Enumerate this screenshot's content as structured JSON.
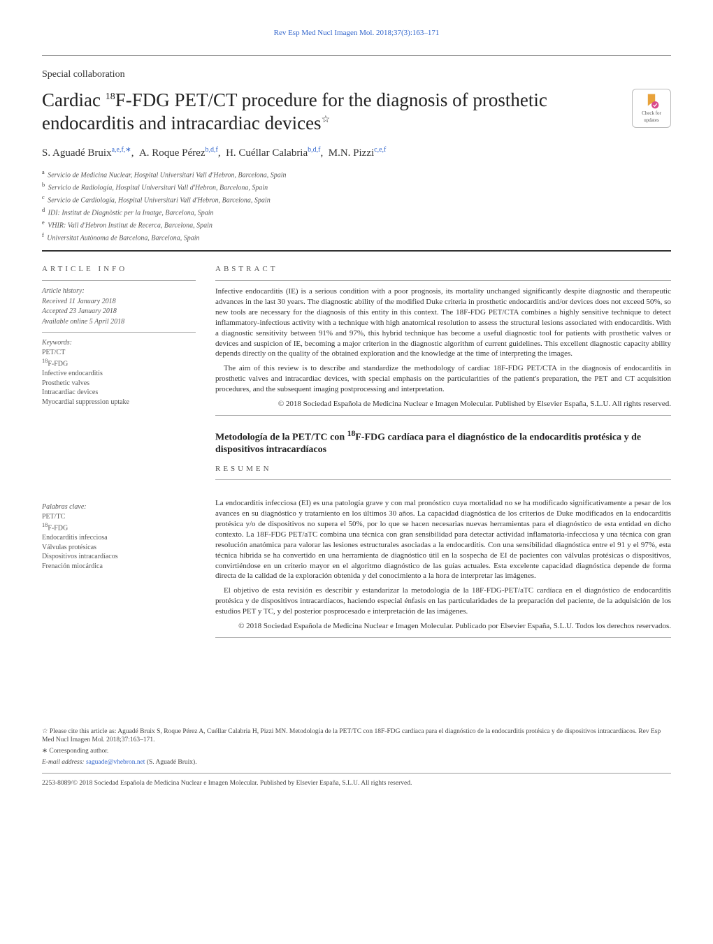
{
  "journal_ref": "Rev Esp Med Nucl Imagen Mol. 2018;37(3):163–171",
  "article_type": "Special collaboration",
  "title_html": "Cardiac <sup>18</sup>F-FDG PET/CT procedure for the diagnosis of prosthetic endocarditis and intracardiac devices",
  "title_note": "☆",
  "check_badge": {
    "line1": "Check for",
    "line2": "updates"
  },
  "authors": [
    {
      "name": "S. Aguadé Bruix",
      "aff": "a,e,f,∗"
    },
    {
      "name": "A. Roque Pérez",
      "aff": "b,d,f"
    },
    {
      "name": "H. Cuéllar Calabria",
      "aff": "b,d,f"
    },
    {
      "name": "M.N. Pizzi",
      "aff": "c,e,f"
    }
  ],
  "affiliations": [
    {
      "sup": "a",
      "text": "Servicio de Medicina Nuclear, Hospital Universitari Vall d'Hebron, Barcelona, Spain"
    },
    {
      "sup": "b",
      "text": "Servicio de Radiología, Hospital Universitari Vall d'Hebron, Barcelona, Spain"
    },
    {
      "sup": "c",
      "text": "Servicio de Cardiología, Hospital Universitari Vall d'Hebron, Barcelona, Spain"
    },
    {
      "sup": "d",
      "text": "IDI: Institut de Diagnòstic per la Imatge, Barcelona, Spain"
    },
    {
      "sup": "e",
      "text": "VHIR: Vall d'Hebron Institut de Recerca, Barcelona, Spain"
    },
    {
      "sup": "f",
      "text": "Universitat Autònoma de Barcelona, Barcelona, Spain"
    }
  ],
  "info_heading": "article info",
  "abstract_heading": "abstract",
  "resumen_heading": "resumen",
  "history": {
    "label": "Article history:",
    "received": "Received 11 January 2018",
    "accepted": "Accepted 23 January 2018",
    "online": "Available online 5 April 2018"
  },
  "keywords_en": {
    "label": "Keywords:",
    "items": [
      "PET/CT",
      "18F-FDG",
      "Infective endocarditis",
      "Prosthetic valves",
      "Intracardiac devices",
      "Myocardial suppression uptake"
    ]
  },
  "keywords_es": {
    "label": "Palabras clave:",
    "items": [
      "PET/TC",
      "18F-FDG",
      "Endocarditis infecciosa",
      "Válvulas protésicas",
      "Dispositivos intracardíacos",
      "Frenación miocárdica"
    ]
  },
  "abstract_en": {
    "p1": "Infective endocarditis (IE) is a serious condition with a poor prognosis, its mortality unchanged significantly despite diagnostic and therapeutic advances in the last 30 years. The diagnostic ability of the modified Duke criteria in prosthetic endocarditis and/or devices does not exceed 50%, so new tools are necessary for the diagnosis of this entity in this context. The 18F-FDG PET/CTA combines a highly sensitive technique to detect inflammatory-infectious activity with a technique with high anatomical resolution to assess the structural lesions associated with endocarditis. With a diagnostic sensitivity between 91% and 97%, this hybrid technique has become a useful diagnostic tool for patients with prosthetic valves or devices and suspicion of IE, becoming a major criterion in the diagnostic algorithm of current guidelines. This excellent diagnostic capacity ability depends directly on the quality of the obtained exploration and the knowledge at the time of interpreting the images.",
    "p2": "The aim of this review is to describe and standardize the methodology of cardiac 18F-FDG PET/CTA in the diagnosis of endocarditis in prosthetic valves and intracardiac devices, with special emphasis on the particularities of the patient's preparation, the PET and CT acquisition procedures, and the subsequent imaging postprocessing and interpretation.",
    "copyright": "© 2018 Sociedad Española de Medicina Nuclear e Imagen Molecular. Published by Elsevier España, S.L.U. All rights reserved."
  },
  "title_es": "Metodología de la PET/TC con 18F-FDG cardíaca para el diagnóstico de la endocarditis protésica y de dispositivos intracardíacos",
  "abstract_es": {
    "p1": "La endocarditis infecciosa (EI) es una patología grave y con mal pronóstico cuya mortalidad no se ha modificado significativamente a pesar de los avances en su diagnóstico y tratamiento en los últimos 30 años. La capacidad diagnóstica de los criterios de Duke modificados en la endocarditis protésica y/o de dispositivos no supera el 50%, por lo que se hacen necesarias nuevas herramientas para el diagnóstico de esta entidad en dicho contexto. La 18F-FDG PET/aTC combina una técnica con gran sensibilidad para detectar actividad inflamatoria-infecciosa y una técnica con gran resolución anatómica para valorar las lesiones estructurales asociadas a la endocarditis. Con una sensibilidad diagnóstica entre el 91 y el 97%, esta técnica híbrida se ha convertido en una herramienta de diagnóstico útil en la sospecha de EI de pacientes con válvulas protésicas o dispositivos, convirtiéndose en un criterio mayor en el algoritmo diagnóstico de las guías actuales. Esta excelente capacidad diagnóstica depende de forma directa de la calidad de la exploración obtenida y del conocimiento a la hora de interpretar las imágenes.",
    "p2": "El objetivo de esta revisión es describir y estandarizar la metodología de la 18F-FDG-PET/aTC cardíaca en el diagnóstico de endocarditis protésica y de dispositivos intracardíacos, haciendo especial énfasis en las particularidades de la preparación del paciente, de la adquisición de los estudios PET y TC, y del posterior posprocesado e interpretación de las imágenes.",
    "copyright": "© 2018 Sociedad Española de Medicina Nuclear e Imagen Molecular. Publicado por Elsevier España, S.L.U. Todos los derechos reservados."
  },
  "footnotes": {
    "cite": "☆ Please cite this article as: Aguadé Bruix S, Roque Pérez A, Cuéllar Calabria H, Pizzi MN. Metodología de la PET/TC con 18F-FDG cardíaca para el diagnóstico de la endocarditis protésica y de dispositivos intracardíacos. Rev Esp Med Nucl Imagen Mol. 2018;37:163–171.",
    "corresp": "∗ Corresponding author.",
    "email_label": "E-mail address:",
    "email": "saguade@vhebron.net",
    "email_name": "(S. Aguadé Bruix).",
    "issn": "2253-8089/© 2018 Sociedad Española de Medicina Nuclear e Imagen Molecular. Published by Elsevier España, S.L.U. All rights reserved."
  },
  "colors": {
    "link": "#3366cc",
    "text": "#333333",
    "muted": "#555555",
    "rule": "#999999",
    "badge_bookmark": "#e8a23b",
    "badge_check": "#d94a8c"
  }
}
